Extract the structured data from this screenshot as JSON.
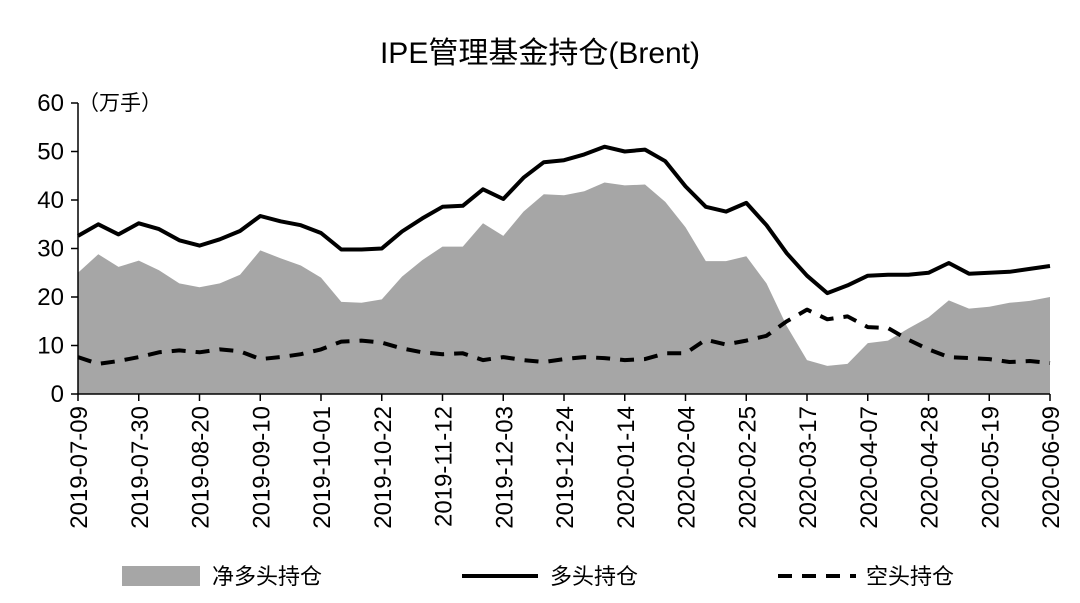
{
  "chart_data": {
    "type": "area+line",
    "title": "IPE管理基金持仓(Brent)",
    "unit_label": "（万手）",
    "ylim": [
      0,
      60
    ],
    "y_ticks": [
      0,
      10,
      20,
      30,
      40,
      50,
      60
    ],
    "x_tick_labels": [
      "2019-07-09",
      "2019-07-30",
      "2019-08-20",
      "2019-09-10",
      "2019-10-01",
      "2019-10-22",
      "2019-11-12",
      "2019-12-03",
      "2019-12-24",
      "2020-01-14",
      "2020-02-04",
      "2020-02-25",
      "2020-03-17",
      "2020-04-07",
      "2020-04-28",
      "2020-05-19",
      "2020-06-09"
    ],
    "grid": false,
    "legend_position": "bottom",
    "series": [
      {
        "name": "净多头持仓",
        "style": "area",
        "color": "#a6a6a6",
        "values": [
          25.0,
          28.8,
          26.2,
          27.5,
          25.5,
          22.8,
          22.0,
          22.8,
          24.6,
          29.6,
          28.0,
          26.5,
          24.0,
          19.0,
          18.8,
          19.5,
          24.2,
          27.6,
          30.4,
          30.4,
          35.2,
          32.6,
          37.6,
          41.2,
          41.0,
          41.8,
          43.6,
          43.0,
          43.2,
          39.6,
          34.4,
          27.4,
          27.4,
          28.4,
          22.8,
          14.0,
          7.0,
          5.8,
          6.2,
          10.5,
          11.0,
          13.5,
          15.8,
          19.3,
          17.6,
          18.0,
          18.8,
          19.2,
          20.0
        ]
      },
      {
        "name": "多头持仓",
        "style": "solid",
        "color": "#000000",
        "values": [
          32.6,
          35.0,
          32.9,
          35.2,
          34.0,
          31.7,
          30.6,
          31.9,
          33.6,
          36.7,
          35.6,
          34.8,
          33.2,
          29.8,
          29.8,
          30.0,
          33.5,
          36.2,
          38.6,
          38.8,
          42.2,
          40.2,
          44.6,
          47.8,
          48.2,
          49.4,
          51.0,
          50.0,
          50.4,
          48.0,
          42.8,
          38.6,
          37.6,
          39.4,
          34.8,
          29.0,
          24.4,
          20.8,
          22.4,
          24.4,
          24.6,
          24.6,
          25.0,
          27.0,
          24.8,
          25.0,
          25.2,
          25.8,
          26.4
        ]
      },
      {
        "name": "空头持仓",
        "style": "dashed",
        "color": "#000000",
        "values": [
          7.6,
          6.2,
          6.8,
          7.6,
          8.6,
          9.0,
          8.6,
          9.2,
          8.8,
          7.2,
          7.6,
          8.2,
          9.2,
          10.8,
          11.0,
          10.6,
          9.4,
          8.6,
          8.2,
          8.4,
          7.0,
          7.6,
          7.0,
          6.6,
          7.2,
          7.6,
          7.4,
          7.0,
          7.2,
          8.4,
          8.4,
          11.2,
          10.2,
          11.0,
          12.0,
          15.0,
          17.4,
          15.4,
          16.0,
          13.8,
          13.6,
          11.2,
          9.2,
          7.6,
          7.4,
          7.2,
          6.6,
          6.8,
          6.4
        ]
      }
    ]
  }
}
